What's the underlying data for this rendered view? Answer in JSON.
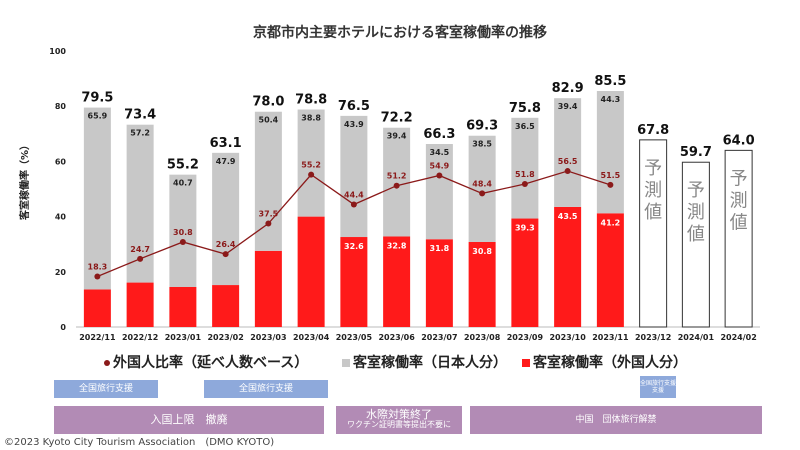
{
  "chart_data": {
    "type": "bar",
    "title": "京都市内主要ホテルにおける客室稼働率の推移",
    "ylabel": "客室稼働率（%）",
    "ylim": [
      0,
      100
    ],
    "yticks": [
      0,
      20,
      40,
      60,
      80,
      100
    ],
    "categories": [
      "2022/11",
      "2022/12",
      "2023/01",
      "2023/02",
      "2023/03",
      "2023/04",
      "2023/05",
      "2023/06",
      "2023/07",
      "2023/08",
      "2023/09",
      "2023/10",
      "2023/11",
      "2023/12",
      "2024/01",
      "2024/02"
    ],
    "totals": [
      79.5,
      73.4,
      55.2,
      63.1,
      78.0,
      78.8,
      76.5,
      72.2,
      66.3,
      69.3,
      75.8,
      82.9,
      85.5,
      67.8,
      59.7,
      64.0
    ],
    "series": [
      {
        "name": "客室稼働率（外国人分）",
        "type": "bar",
        "color": "#ff1a1a",
        "values": [
          13.6,
          16.1,
          14.5,
          15.2,
          27.6,
          40.0,
          32.6,
          32.8,
          31.8,
          30.8,
          39.3,
          43.5,
          41.2,
          null,
          null,
          null
        ],
        "labels": [
          null,
          null,
          null,
          null,
          null,
          null,
          "32.6",
          "32.8",
          "31.8",
          "30.8",
          "39.3",
          "43.5",
          "41.2",
          null,
          null,
          null
        ]
      },
      {
        "name": "客室稼働率（日本人分）",
        "type": "bar",
        "color": "#c8c8c8",
        "values": [
          65.9,
          57.2,
          40.7,
          47.9,
          50.4,
          38.8,
          43.9,
          39.4,
          34.5,
          38.5,
          36.5,
          39.4,
          44.3,
          null,
          null,
          null
        ],
        "labels": [
          "65.9",
          "57.2",
          "40.7",
          "47.9",
          "50.4",
          "38.8",
          "43.9",
          "39.4",
          "34.5",
          "38.5",
          "36.5",
          "39.4",
          "44.3",
          null,
          null,
          null
        ]
      },
      {
        "name": "外国人比率（延べ人数ベース）",
        "type": "line",
        "color": "#8b1a1a",
        "values": [
          18.3,
          24.7,
          30.8,
          26.4,
          37.5,
          55.2,
          44.4,
          51.2,
          54.9,
          48.4,
          51.8,
          56.5,
          51.5,
          null,
          null,
          null
        ]
      }
    ],
    "forecast": {
      "label": "予測値",
      "months": [
        "2023/12",
        "2024/01",
        "2024/02"
      ],
      "values": [
        67.8,
        59.7,
        64.0
      ]
    },
    "legend": [
      "外国人比率（延べ人数ベース）",
      "客室稼働率（日本人分）",
      "客室稼働率（外国人分）"
    ]
  },
  "events": [
    {
      "label": "全国旅行支援",
      "style": "blue",
      "from": 0,
      "to": 2
    },
    {
      "label": "全国旅行支援",
      "style": "blue",
      "from": 2,
      "to": 6
    },
    {
      "label": "全国旅行支援",
      "sublabel": "支援",
      "style": "blue-small",
      "from": 13,
      "to": 14
    },
    {
      "label": "入国上限　撤廃",
      "style": "purple",
      "from": 0,
      "to": 6
    },
    {
      "label": "水際対策終了",
      "sublabel": "ワクチン証明書等提出不要に",
      "style": "purple",
      "from": 6,
      "to": 9
    },
    {
      "label": "中国　団体旅行解禁",
      "style": "purple",
      "from": 9,
      "to": 16
    }
  ],
  "copyright": "©2023 Kyoto City Tourism Association　(DMO KYOTO)"
}
